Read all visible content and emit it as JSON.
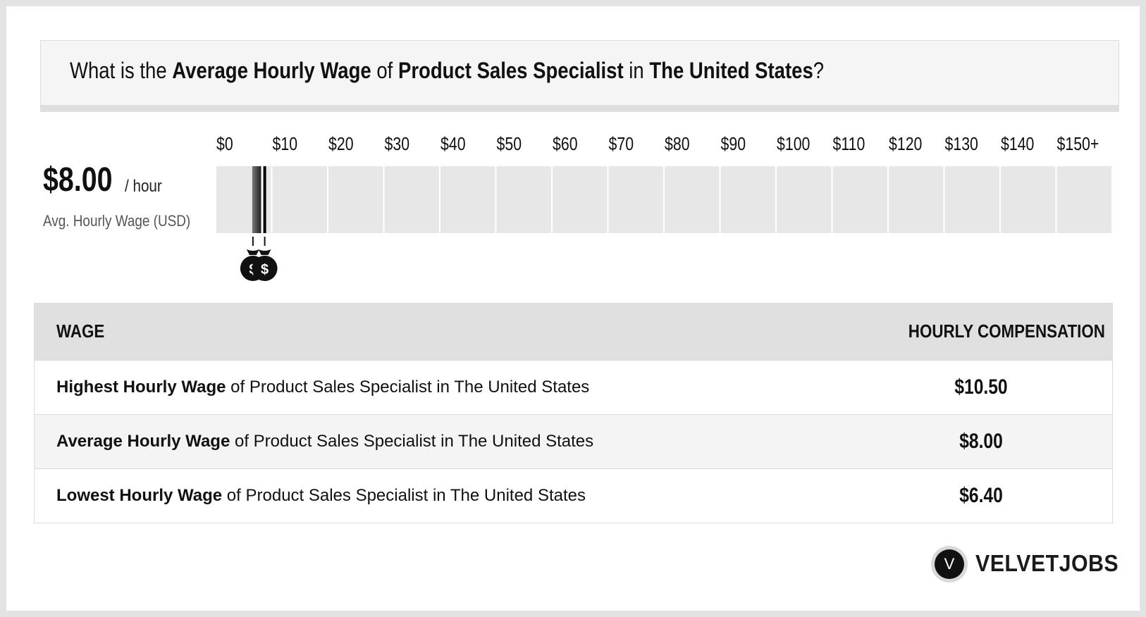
{
  "question": {
    "prefix": "What is the ",
    "metric": "Average Hourly Wage",
    "of": " of ",
    "job": "Product Sales Specialist",
    "in": " in ",
    "location": "The United States",
    "suffix": "?"
  },
  "summary": {
    "value": "$8.00",
    "unit": "/ hour",
    "caption": "Avg. Hourly Wage (USD)"
  },
  "chart_data": {
    "type": "bar",
    "categories": [
      "$0",
      "$10",
      "$20",
      "$30",
      "$40",
      "$50",
      "$60",
      "$70",
      "$80",
      "$90",
      "$100",
      "$110",
      "$120",
      "$130",
      "$140",
      "$150+"
    ],
    "range": {
      "low": 6.4,
      "high": 10.5
    },
    "average": 8.0,
    "lowest": 6.4,
    "highest": 10.5,
    "xlim": [
      0,
      150
    ],
    "colors": {
      "track": "#e7e7e7",
      "range_dark": "#222222",
      "range_light": "#777777",
      "marker": "#000000"
    },
    "icons": [
      "money-bag-icon",
      "money-bag-icon"
    ]
  },
  "table": {
    "header_left": "WAGE",
    "header_right": "HOURLY COMPENSATION",
    "rows": [
      {
        "bold": "Highest Hourly Wage",
        "rest": " of Product Sales Specialist in The United States",
        "value": "$10.50"
      },
      {
        "bold": "Average Hourly Wage",
        "rest": " of Product Sales Specialist in The United States",
        "value": "$8.00"
      },
      {
        "bold": "Lowest Hourly Wage",
        "rest": " of Product Sales Specialist in The United States",
        "value": "$6.40"
      }
    ]
  },
  "brand": {
    "badge_letter": "V",
    "name": "VELVETJOBS"
  }
}
